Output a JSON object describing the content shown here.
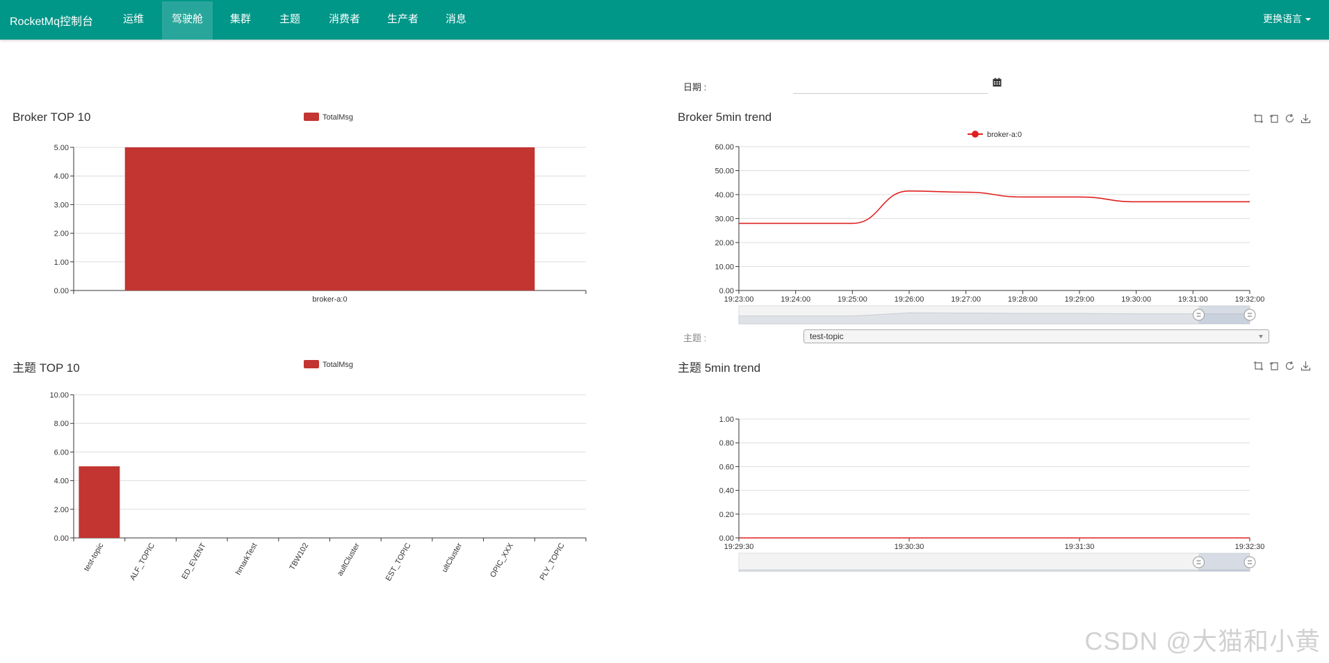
{
  "nav": {
    "brand": "RocketMq控制台",
    "items": [
      "运维",
      "驾驶舱",
      "集群",
      "主题",
      "消费者",
      "生产者",
      "消息"
    ],
    "active_index": 1,
    "language": "更换语言"
  },
  "filters": {
    "date_label": "日期 :",
    "date_value": "",
    "topic_label": "主题 :",
    "topic_value": "test-topic"
  },
  "colors": {
    "primary": "#009688",
    "bar": "#c23531",
    "line": "#e01f1f"
  },
  "chart_data": [
    {
      "id": "broker-top10",
      "type": "bar",
      "title": "Broker TOP 10",
      "legend": "TotalMsg",
      "categories": [
        "broker-a:0"
      ],
      "values": [
        5
      ],
      "ylim": [
        0,
        5
      ],
      "yticks": [
        "0.00",
        "1.00",
        "2.00",
        "3.00",
        "4.00",
        "5.00"
      ]
    },
    {
      "id": "broker-5min-trend",
      "type": "line",
      "title": "Broker 5min trend",
      "legend": "broker-a:0",
      "x": [
        "19:23:00",
        "19:24:00",
        "19:25:00",
        "19:26:00",
        "19:27:00",
        "19:28:00",
        "19:29:00",
        "19:30:00",
        "19:31:00",
        "19:32:00"
      ],
      "values": [
        28,
        28,
        28,
        41.5,
        41,
        39,
        39,
        37,
        37,
        37
      ],
      "ylim": [
        0,
        60
      ],
      "yticks": [
        "0.00",
        "10.00",
        "20.00",
        "30.00",
        "40.00",
        "50.00",
        "60.00"
      ]
    },
    {
      "id": "topic-top10",
      "type": "bar",
      "title": "主题 TOP 10",
      "legend": "TotalMsg",
      "categories": [
        "test-topic",
        "ALF_TOPIC",
        "ED_EVENT",
        "hmarkTest",
        "TBW102",
        "aultCluster",
        "EST_TOPIC",
        "ultCluster",
        "OPIC_XXX",
        "PLY_TOPIC"
      ],
      "values": [
        5,
        0,
        0,
        0,
        0,
        0,
        0,
        0,
        0,
        0
      ],
      "ylim": [
        0,
        10
      ],
      "yticks": [
        "0.00",
        "2.00",
        "4.00",
        "6.00",
        "8.00",
        "10.00"
      ]
    },
    {
      "id": "topic-5min-trend",
      "type": "line",
      "title": "主题 5min trend",
      "x": [
        "19:29:30",
        "19:30:30",
        "19:31:30",
        "19:32:30"
      ],
      "values": [
        0,
        0,
        0,
        0
      ],
      "ylim": [
        0,
        1
      ],
      "yticks": [
        "0.00",
        "0.20",
        "0.40",
        "0.60",
        "0.80",
        "1.00"
      ]
    }
  ],
  "watermark": "CSDN @大猫和小黄"
}
